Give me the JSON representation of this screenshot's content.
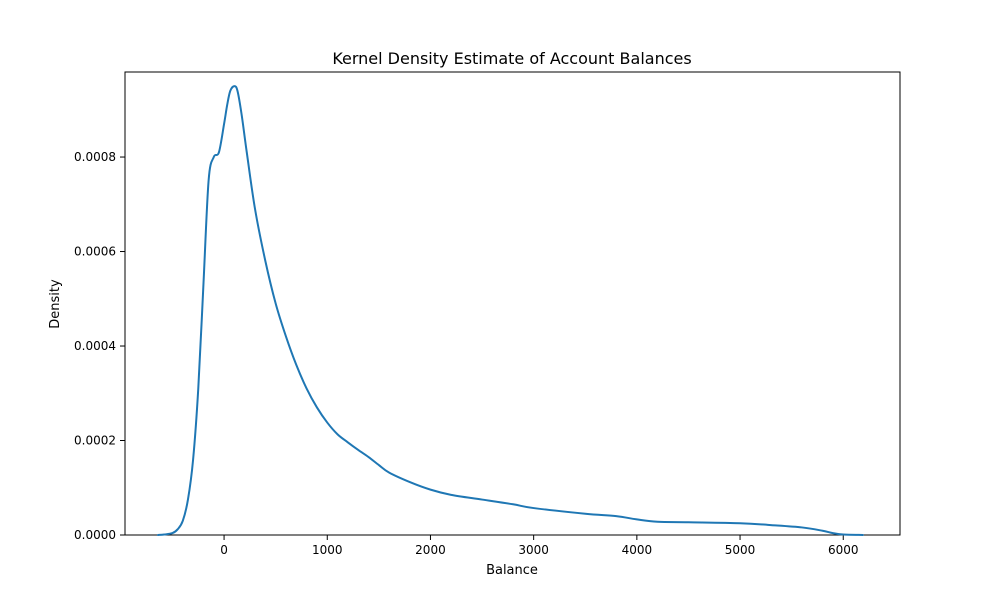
{
  "chart_data": {
    "type": "line",
    "title": "Kernel Density Estimate of Account Balances",
    "xlabel": "Balance",
    "ylabel": "Density",
    "xlim": [
      -960,
      6550
    ],
    "ylim": [
      0,
      0.00098
    ],
    "grid": false,
    "legend": "none",
    "colors": {
      "line": "#1f77b4"
    },
    "xticks": [
      0,
      1000,
      2000,
      3000,
      4000,
      5000,
      6000
    ],
    "xtick_labels": [
      "0",
      "1000",
      "2000",
      "3000",
      "4000",
      "5000",
      "6000"
    ],
    "yticks": [
      0,
      0.0002,
      0.0004,
      0.0006,
      0.0008
    ],
    "ytick_labels": [
      "0.0000",
      "0.0002",
      "0.0004",
      "0.0006",
      "0.0008"
    ],
    "series": [
      {
        "x": [
          -640,
          -580,
          -500,
          -450,
          -400,
          -350,
          -300,
          -250,
          -200,
          -150,
          -100,
          -50,
          0,
          30,
          60,
          100,
          130,
          170,
          220,
          300,
          400,
          500,
          600,
          700,
          800,
          900,
          1000,
          1100,
          1200,
          1300,
          1400,
          1500,
          1600,
          1800,
          2000,
          2200,
          2500,
          2800,
          3000,
          3500,
          3800,
          4000,
          4200,
          4500,
          5000,
          5300,
          5600,
          5800,
          5900,
          6000,
          6190
        ],
        "y": [
          0,
          1e-06,
          4e-06,
          1.2e-05,
          3e-05,
          7.5e-05,
          0.00016,
          0.00031,
          0.00053,
          0.00075,
          0.0008,
          0.00081,
          0.00087,
          0.00091,
          0.00094,
          0.00095,
          0.00094,
          0.00089,
          0.00081,
          0.00069,
          0.00058,
          0.00049,
          0.00042,
          0.00036,
          0.00031,
          0.00027,
          0.000238,
          0.000213,
          0.000196,
          0.00018,
          0.000165,
          0.000148,
          0.000132,
          0.000112,
          9.6e-05,
          8.5e-05,
          7.5e-05,
          6.5e-05,
          5.7e-05,
          4.5e-05,
          4e-05,
          3.3e-05,
          2.8e-05,
          2.7e-05,
          2.5e-05,
          2.1e-05,
          1.6e-05,
          9e-06,
          4e-06,
          1e-06,
          0
        ]
      }
    ]
  }
}
